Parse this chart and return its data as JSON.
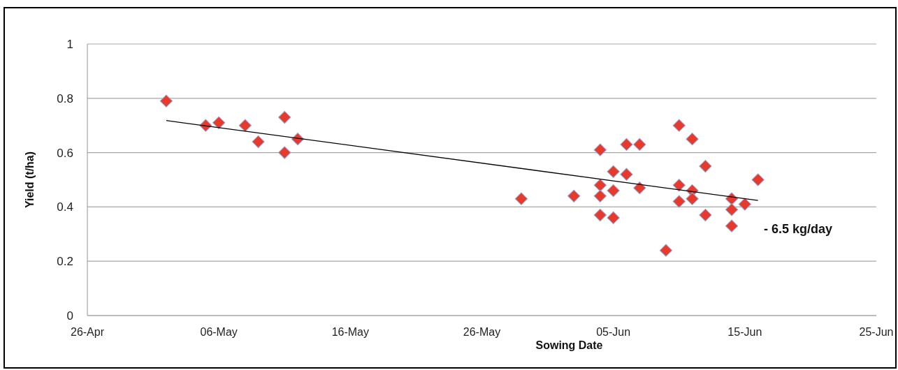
{
  "chart_data": {
    "type": "scatter",
    "xlabel": "Sowing Date",
    "ylabel": "Yield (t/ha)",
    "xlim": [
      "--04-26",
      "--06-25"
    ],
    "xticks": [
      {
        "value": "--04-26",
        "label": "26-Apr"
      },
      {
        "value": "--05-06",
        "label": "06-May"
      },
      {
        "value": "--05-16",
        "label": "16-May"
      },
      {
        "value": "--05-26",
        "label": "26-May"
      },
      {
        "value": "--06-05",
        "label": "05-Jun"
      },
      {
        "value": "--06-15",
        "label": "15-Jun"
      },
      {
        "value": "--06-25",
        "label": "25-Jun"
      }
    ],
    "ylim": [
      0,
      1
    ],
    "yticks": [
      0,
      0.2,
      0.4,
      0.6,
      0.8,
      1
    ],
    "grid": "y",
    "marker": "diamond",
    "series": [
      {
        "color": "#e8392a",
        "x": [
          "--05-02",
          "--05-05",
          "--05-06",
          "--05-08",
          "--05-09",
          "--05-11",
          "--05-11",
          "--05-12",
          "--05-29",
          "--06-02",
          "--06-04",
          "--06-04",
          "--06-04",
          "--06-04",
          "--06-05",
          "--06-05",
          "--06-05",
          "--06-06",
          "--06-06",
          "--06-07",
          "--06-07",
          "--06-09",
          "--06-10",
          "--06-10",
          "--06-10",
          "--06-11",
          "--06-11",
          "--06-11",
          "--06-12",
          "--06-12",
          "--06-14",
          "--06-14",
          "--06-14",
          "--06-15",
          "--06-16"
        ],
        "values": [
          0.79,
          0.7,
          0.71,
          0.7,
          0.64,
          0.73,
          0.6,
          0.65,
          0.43,
          0.44,
          0.61,
          0.48,
          0.44,
          0.37,
          0.53,
          0.46,
          0.36,
          0.63,
          0.52,
          0.63,
          0.47,
          0.24,
          0.7,
          0.48,
          0.42,
          0.65,
          0.46,
          0.43,
          0.55,
          0.37,
          0.43,
          0.39,
          0.33,
          0.41,
          0.5
        ]
      },
      {
        "type": "line",
        "color": "#000000",
        "marker": "none",
        "x": [
          "--05-02",
          "--06-16"
        ],
        "values": [
          0.718,
          0.424
        ]
      }
    ],
    "annotations": [
      "- 6.5 kg/day"
    ]
  }
}
